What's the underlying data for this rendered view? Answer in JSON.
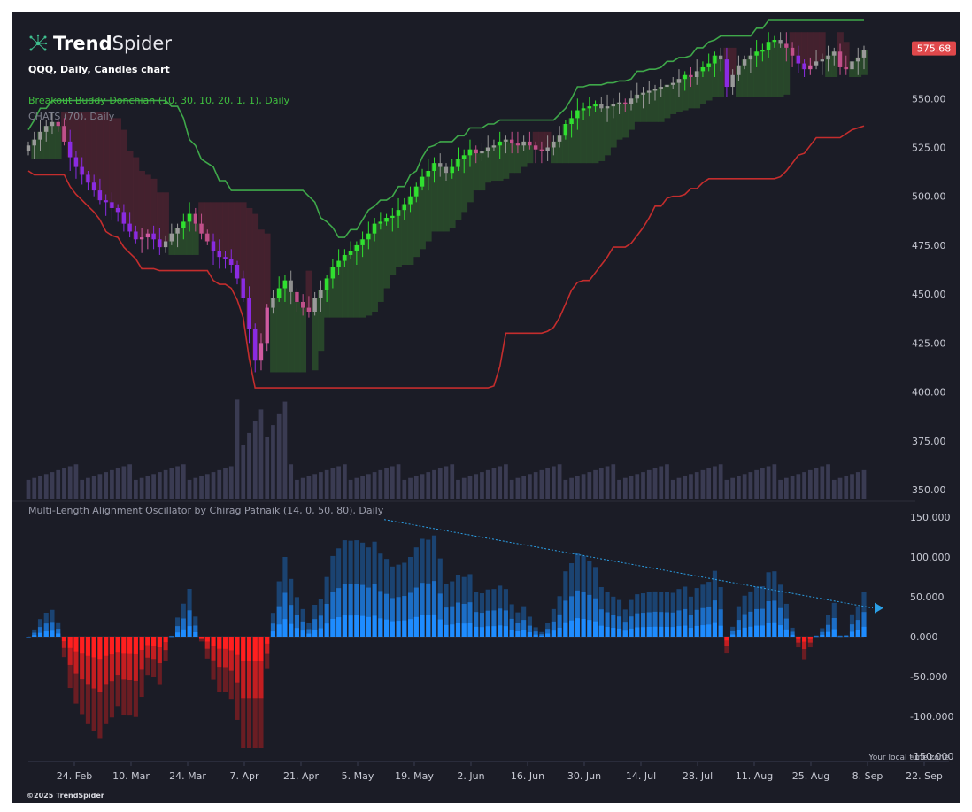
{
  "brand": {
    "name_bold": "Trend",
    "name_thin": "Spider",
    "logo_icon": "spider-network-icon"
  },
  "subtitle": "QQQ, Daily, Candles chart",
  "indicators": [
    {
      "label": "Breakout Buddy Donchian (10, 30, 10, 20, 1, 1), Daily",
      "color": "#3fbf3f"
    },
    {
      "label": "CHATS (70), Daily",
      "color": "#7d7f8c"
    }
  ],
  "oscillator_label": "Multi-Length Alignment Oscillator by Chirag Patnaik (14, 0, 50, 80), Daily",
  "timezone_note": "Your local time zone",
  "copyright": "©2025 TrendSpider",
  "colors": {
    "background": "#1b1c26",
    "donchian_upper": "#3fa84a",
    "donchian_lower": "#c42d2d",
    "bull_fill": "#2a4d2c",
    "bear_fill": "#4a2230",
    "price_badge": "#e0484b",
    "osc_positive": "#1e8cff",
    "osc_negative": "#ff1f1f",
    "trendline": "#2b9fe6"
  },
  "chart_data": [
    {
      "type": "candlestick",
      "title": "QQQ, Daily, Candles chart",
      "last_price_label": "575.68",
      "ylim": [
        345,
        585
      ],
      "y_ticks": [
        "550.00",
        "525.00",
        "500.00",
        "475.00",
        "450.00",
        "425.00",
        "400.00",
        "375.00",
        "350.00"
      ],
      "x_ticks": [
        "24. Feb",
        "10. Mar",
        "24. Mar",
        "7. Apr",
        "21. Apr",
        "5. May",
        "19. May",
        "2. Jun",
        "16. Jun",
        "30. Jun",
        "14. Jul",
        "28. Jul",
        "11. Aug",
        "25. Aug",
        "8. Sep",
        "22. Sep"
      ],
      "closes": [
        526,
        529,
        533,
        536,
        538,
        536,
        528,
        520,
        515,
        511,
        507,
        503,
        498,
        497,
        494,
        492,
        486,
        482,
        478,
        479,
        481,
        478,
        474,
        477,
        481,
        484,
        487,
        491,
        486,
        481,
        477,
        472,
        469,
        468,
        465,
        458,
        448,
        432,
        416,
        425,
        443,
        448,
        453,
        457,
        451,
        446,
        443,
        441,
        448,
        452,
        458,
        464,
        467,
        470,
        472,
        475,
        478,
        481,
        486,
        487,
        489,
        490,
        493,
        496,
        500,
        505,
        510,
        513,
        517,
        515,
        512,
        515,
        519,
        521,
        524,
        522,
        523,
        525,
        526,
        528,
        529,
        527,
        526,
        528,
        526,
        524,
        523,
        525,
        528,
        531,
        537,
        540,
        544,
        545,
        546,
        547,
        545,
        546,
        547,
        548,
        547,
        550,
        552,
        553,
        554,
        555,
        556,
        557,
        558,
        560,
        562,
        561,
        564,
        566,
        568,
        572,
        570,
        556,
        562,
        567,
        570,
        572,
        574,
        575,
        579,
        580,
        578,
        576,
        572,
        568,
        565,
        567,
        569,
        570,
        572,
        574,
        566,
        565,
        569,
        571,
        575
      ],
      "volume_max_display": 390,
      "volume_floor": 350
    },
    {
      "type": "bar",
      "title": "Multi-Length Alignment Oscillator by Chirag Patnaik (14, 0, 50, 80), Daily",
      "ylim": [
        -150,
        150
      ],
      "y_ticks": [
        "150.000",
        "100.000",
        "50.000",
        "0.000",
        "-50.000",
        "-100.000",
        "-150.000"
      ],
      "trendline": {
        "from_value": 147,
        "to_value": 36,
        "direction": "down"
      }
    }
  ]
}
